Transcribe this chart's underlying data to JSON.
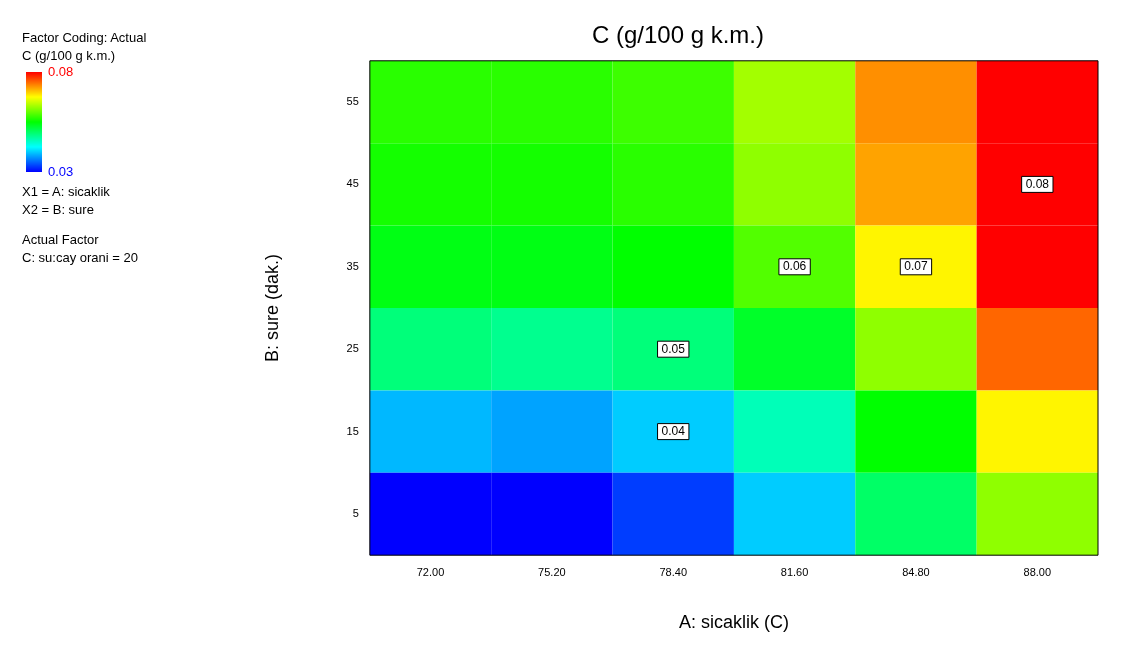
{
  "chart_data": {
    "type": "heatmap",
    "title": "C (g/100 g k.m.)",
    "xlabel": "A: sicaklik (C)",
    "ylabel": "B: sure (dak.)",
    "clabel": "C (g/100 g k.m.)",
    "categories": [
      "72.00",
      "75.20",
      "78.40",
      "81.60",
      "84.80",
      "88.00"
    ],
    "y_categories": [
      "55",
      "45",
      "35",
      "25",
      "15",
      "5"
    ],
    "cells": [
      [
        0.057,
        0.057,
        0.058,
        0.063,
        0.073,
        0.08
      ],
      [
        0.056,
        0.056,
        0.057,
        0.062,
        0.072,
        0.08
      ],
      [
        0.054,
        0.054,
        0.055,
        0.059,
        0.068,
        0.08
      ],
      [
        0.049,
        0.048,
        0.049,
        0.053,
        0.062,
        0.075
      ],
      [
        0.039,
        0.038,
        0.04,
        0.046,
        0.055,
        0.068
      ],
      [
        0.03,
        0.03,
        0.033,
        0.04,
        0.05,
        0.062
      ]
    ],
    "clim": [
      0.03,
      0.08
    ],
    "cticks": [
      0.03,
      0.08
    ],
    "annotations": [
      "Factor Coding: Actual",
      "X1 = A: sicaklik",
      "X2 = B: sure",
      "Actual Factor",
      "C: su:cay orani = 20",
      {
        "text": "0.04",
        "x": "78.40",
        "y": "15"
      },
      {
        "text": "0.05",
        "x": "78.40",
        "y": "25"
      },
      {
        "text": "0.06",
        "x": "81.60",
        "y": "35"
      },
      {
        "text": "0.07",
        "x": "84.80",
        "y": "35"
      },
      {
        "text": "0.08",
        "x": "88.00",
        "y": "45"
      }
    ]
  }
}
